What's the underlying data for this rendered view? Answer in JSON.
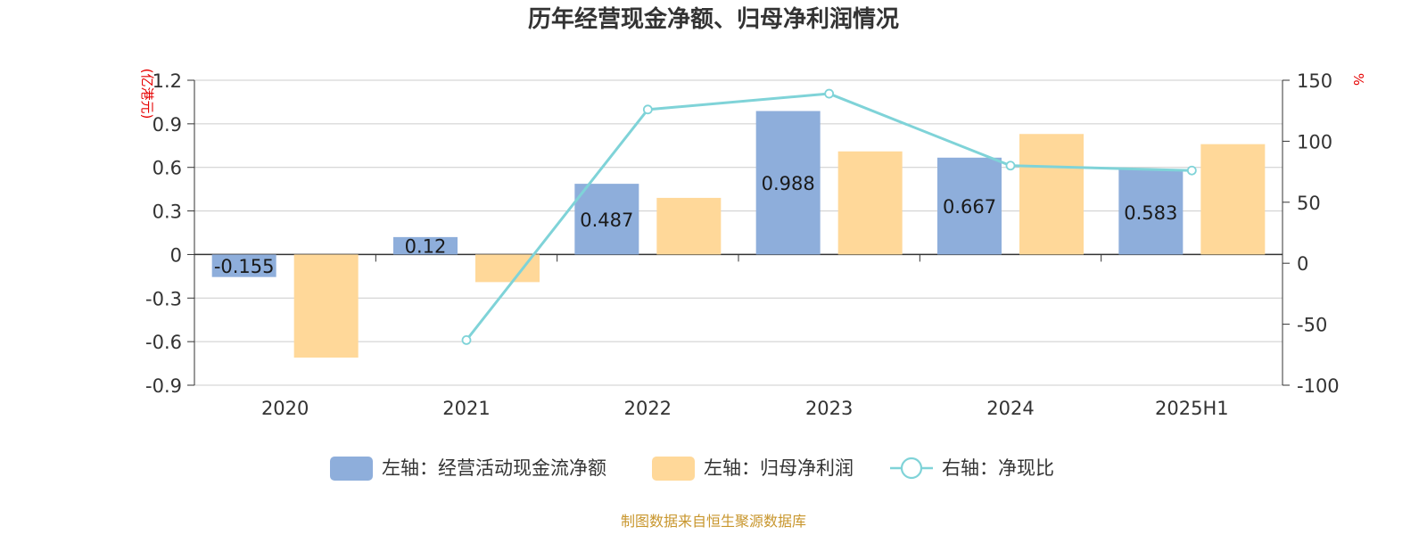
{
  "chart_data": {
    "type": "bar",
    "title": "历年经营现金净额、归母净利润情况",
    "categories": [
      "2020",
      "2021",
      "2022",
      "2023",
      "2024",
      "2025H1"
    ],
    "left_axis": {
      "unit": "(亿港元)",
      "ylim": [
        -0.9,
        1.2
      ],
      "ticks": [
        1.2,
        0.9,
        0.6,
        0.3,
        0,
        -0.3,
        -0.6,
        -0.9
      ],
      "tick_labels": [
        "1.2",
        "0.9",
        "0.6",
        "0.3",
        "0",
        "-0.3",
        "-0.6",
        "-0.9"
      ]
    },
    "right_axis": {
      "unit": "%",
      "ylim": [
        -100,
        150
      ],
      "ticks": [
        150,
        100,
        50,
        0,
        -50,
        -100
      ],
      "tick_labels": [
        "150",
        "100",
        "50",
        "0",
        "-50",
        "-100"
      ]
    },
    "series": [
      {
        "name": "左轴：经营活动现金流净额",
        "type": "bar",
        "axis": "left",
        "color": "#8eaedb",
        "values": [
          -0.155,
          0.12,
          0.487,
          0.988,
          0.667,
          0.583
        ],
        "labels": [
          "-0.155",
          "0.12",
          "0.487",
          "0.988",
          "0.667",
          "0.583"
        ]
      },
      {
        "name": "左轴：归母净利润",
        "type": "bar",
        "axis": "left",
        "color": "#ffd899",
        "values": [
          -0.71,
          -0.19,
          0.39,
          0.71,
          0.83,
          0.76
        ]
      },
      {
        "name": "右轴：净现比",
        "type": "line",
        "axis": "right",
        "color": "#7fd3d8",
        "values": [
          null,
          -63,
          126,
          139,
          80,
          76
        ]
      }
    ]
  },
  "legend": {
    "items": [
      "左轴：经营活动现金流净额",
      "左轴：归母净利润",
      "右轴：净现比"
    ]
  },
  "source": "制图数据来自恒生聚源数据库"
}
